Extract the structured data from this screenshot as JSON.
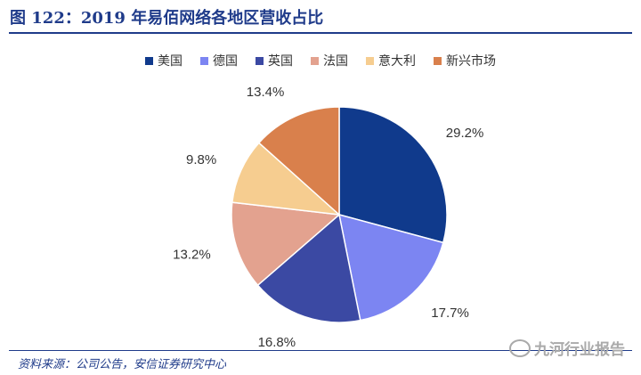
{
  "title": "图 122：2019 年易佰网络各地区营收占比",
  "source": "资料来源：公司公告，安信证券研究中心",
  "watermark": "九河行业报告",
  "chart_data": {
    "type": "pie",
    "title": "",
    "legend_position": "top",
    "categories": [
      "美国",
      "德国",
      "英国",
      "法国",
      "意大利",
      "新兴市场"
    ],
    "values": [
      29.2,
      17.7,
      16.8,
      13.2,
      9.8,
      13.4
    ],
    "value_labels": [
      "29.2%",
      "17.7%",
      "16.8%",
      "13.2%",
      "9.8%",
      "13.4%"
    ],
    "colors": [
      "#103a8c",
      "#7c85f2",
      "#3b49a3",
      "#e3a28f",
      "#f6cd90",
      "#d9804c"
    ]
  }
}
